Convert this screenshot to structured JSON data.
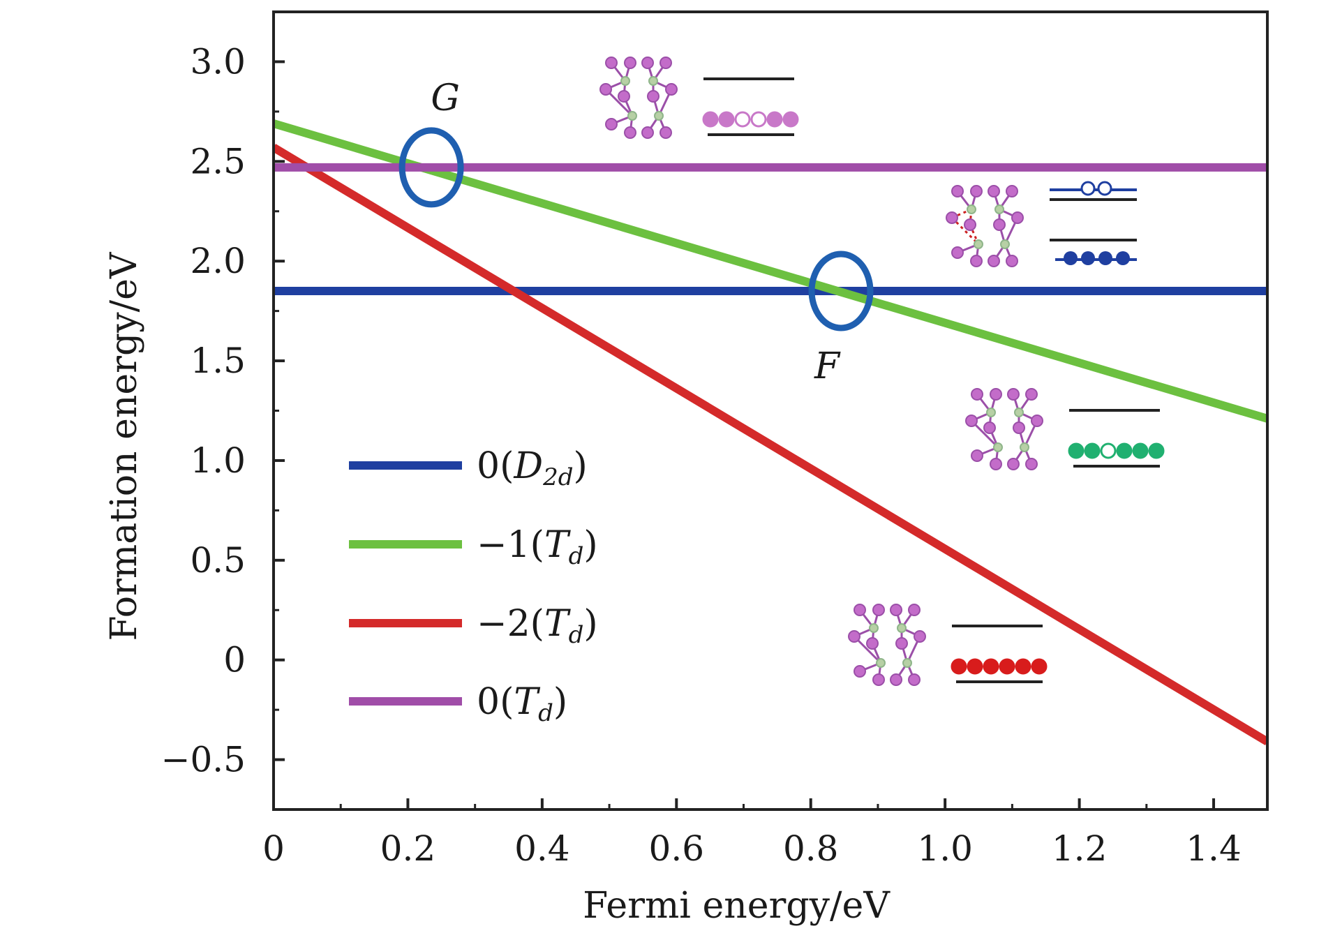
{
  "chart_data": {
    "type": "line",
    "xlabel": "Fermi energy/eV",
    "ylabel": "Formation energy/eV",
    "xlim": [
      0,
      1.48
    ],
    "ylim": [
      -0.75,
      3.25
    ],
    "x_ticks": [
      "0",
      "0.2",
      "0.4",
      "0.6",
      "0.8",
      "1.0",
      "1.2",
      "1.4"
    ],
    "x_tick_values": [
      0,
      0.2,
      0.4,
      0.6,
      0.8,
      1.0,
      1.2,
      1.4
    ],
    "y_ticks": [
      "−0.5",
      "0",
      "0.5",
      "1.0",
      "1.5",
      "2.0",
      "2.5",
      "3.0"
    ],
    "y_tick_values": [
      -0.5,
      0,
      0.5,
      1.0,
      1.5,
      2.0,
      2.5,
      3.0
    ],
    "grid": false,
    "legend_position": "lower-left",
    "series": [
      {
        "name": "0(D2d)",
        "legend_main": "0(",
        "legend_sym": "D",
        "legend_sub": "2d",
        "legend_end": ")",
        "color": "#1f3fa0",
        "x": [
          0,
          1.48
        ],
        "y": [
          1.85,
          1.85
        ]
      },
      {
        "name": "−1(Td)",
        "legend_main": "−1(",
        "legend_sym": "T",
        "legend_sub": "d",
        "legend_end": ")",
        "color": "#6cc040",
        "x": [
          0,
          1.48
        ],
        "y": [
          2.69,
          1.21
        ]
      },
      {
        "name": "−2(Td)",
        "legend_main": "−2(",
        "legend_sym": "T",
        "legend_sub": "d",
        "legend_end": ")",
        "color": "#d42a2a",
        "x": [
          0,
          1.48
        ],
        "y": [
          2.57,
          -0.41
        ]
      },
      {
        "name": "0(Td)",
        "legend_main": "0(",
        "legend_sym": "T",
        "legend_sub": "d",
        "legend_end": ")",
        "color": "#a04da8",
        "x": [
          0,
          1.48
        ],
        "y": [
          2.47,
          2.47
        ]
      }
    ],
    "annotations": [
      {
        "label": "G",
        "x": 0.235,
        "y": 2.47
      },
      {
        "label": "F",
        "x": 0.845,
        "y": 1.85
      }
    ],
    "insets": [
      {
        "name": "inset-0-td",
        "dot_color": "#c878c8",
        "dots": [
          1,
          1,
          0,
          0,
          1,
          1
        ],
        "extra_dashed": false
      },
      {
        "name": "inset-0-d2d",
        "dot_color": "#1f3fa0",
        "dots": [
          1,
          1,
          1,
          1
        ],
        "extra_dashed": true
      },
      {
        "name": "inset-minus1-td",
        "dot_color": "#20b070",
        "dots": [
          1,
          1,
          0,
          1,
          1,
          1
        ],
        "extra_dashed": false
      },
      {
        "name": "inset-minus2-td",
        "dot_color": "#d81c1c",
        "dots": [
          1,
          1,
          1,
          1,
          1,
          1
        ],
        "extra_dashed": false
      }
    ]
  }
}
